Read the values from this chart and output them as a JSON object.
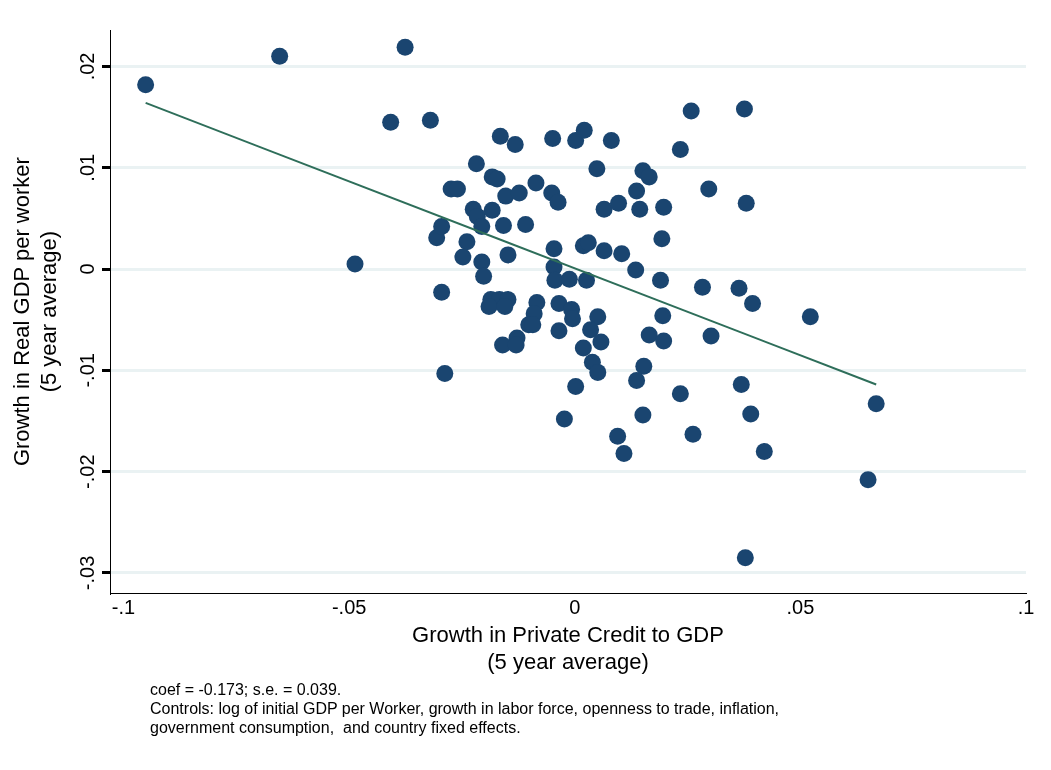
{
  "chart_data": {
    "type": "scatter",
    "xlabel": "Growth in Private Credit to GDP\n(5 year average)",
    "ylabel": "Growth in Real GDP per worker\n(5 year average)",
    "xlim": [
      -0.103,
      0.1
    ],
    "xticks": [
      {
        "value": -0.1,
        "label": "-.1"
      },
      {
        "value": -0.05,
        "label": "-.05"
      },
      0,
      {
        "value": 0.05,
        "label": ".05"
      },
      {
        "value": 0.1,
        "label": ".1"
      }
    ],
    "ylim": [
      -0.032,
      0.0236
    ],
    "yticks": [
      {
        "value": -0.03,
        "label": "-.03"
      },
      {
        "value": -0.02,
        "label": "-.02"
      },
      {
        "value": -0.01,
        "label": "-.01"
      },
      0,
      {
        "value": 0.01,
        "label": ".01"
      },
      {
        "value": 0.02,
        "label": ".02"
      }
    ],
    "grid": "y",
    "legend": false,
    "series": [
      {
        "type": "scatter",
        "marker": "circle",
        "color": "#1a4570",
        "x": [
          -0.0951,
          -0.0654,
          -0.0376,
          -0.0408,
          -0.032,
          -0.0487,
          -0.0295,
          -0.0288,
          -0.0306,
          -0.0295,
          -0.0274,
          -0.026,
          -0.0218,
          -0.0225,
          -0.0216,
          -0.0206,
          -0.0239,
          -0.0248,
          -0.0206,
          -0.0202,
          -0.0183,
          -0.0172,
          -0.0183,
          -0.0165,
          -0.0153,
          -0.0148,
          -0.0158,
          -0.0132,
          -0.0123,
          -0.0109,
          -0.0086,
          -0.0186,
          -0.0167,
          -0.0148,
          -0.019,
          -0.0155,
          -0.0084,
          -0.009,
          -0.0102,
          -0.0093,
          -0.0128,
          -0.016,
          -0.013,
          -0.0035,
          -0.0007,
          -0.0005,
          -0.0035,
          0.0051,
          0.0035,
          0.0019,
          0.0039,
          0.0051,
          0.0002,
          -0.0023,
          -0.0049,
          0.0002,
          0.0021,
          0.0049,
          -0.0051,
          -0.0037,
          -0.0046,
          -0.0046,
          -0.0044,
          -0.0012,
          0.0019,
          0.003,
          0.0065,
          0.0065,
          0.0026,
          0.0258,
          0.0376,
          0.0081,
          0.0234,
          0.0151,
          0.0165,
          0.0137,
          0.0297,
          0.0097,
          0.0144,
          0.0197,
          0.038,
          0.0104,
          0.0193,
          0.0135,
          0.019,
          0.0283,
          0.0364,
          0.0058,
          0.0394,
          0.0195,
          0.0165,
          0.0197,
          0.0302,
          0.0153,
          0.0137,
          0.0234,
          0.0369,
          0.0151,
          0.039,
          0.0095,
          0.0262,
          0.0109,
          0.042,
          0.0522,
          0.065,
          0.0668,
          0.0378
        ],
        "values": [
          0.0182,
          0.021,
          0.0219,
          0.0145,
          0.0147,
          0.0005,
          -0.0023,
          -0.0103,
          0.0031,
          0.0042,
          0.0079,
          0.0079,
          0.0104,
          0.0059,
          0.0052,
          0.0042,
          0.0027,
          0.0012,
          0.0007,
          -0.0007,
          0.0091,
          0.0089,
          0.0058,
          0.0131,
          0.0072,
          0.0014,
          0.0043,
          0.0123,
          0.0075,
          0.0044,
          0.0085,
          -0.003,
          -0.003,
          -0.003,
          -0.0037,
          -0.0037,
          -0.0033,
          -0.0044,
          -0.0055,
          -0.0055,
          -0.0068,
          -0.0075,
          -0.0075,
          -0.0034,
          -0.004,
          -0.0049,
          -0.0061,
          -0.0047,
          -0.006,
          -0.0078,
          -0.0092,
          -0.0102,
          -0.0116,
          -0.0148,
          0.0129,
          0.0127,
          0.0137,
          0.0099,
          0.0075,
          0.0066,
          0.002,
          0.0002,
          -0.0011,
          -0.001,
          0.0023,
          0.0026,
          0.0059,
          0.0018,
          -0.0011,
          0.0156,
          0.0158,
          0.0127,
          0.0118,
          0.0097,
          0.0091,
          0.0077,
          0.0079,
          0.0065,
          0.0059,
          0.0061,
          0.0065,
          0.0015,
          0.003,
          -0.0001,
          -0.0011,
          -0.0018,
          -0.0019,
          -0.0072,
          -0.0034,
          -0.0046,
          -0.0065,
          -0.0071,
          -0.0066,
          -0.0096,
          -0.011,
          -0.0123,
          -0.0114,
          -0.0144,
          -0.0143,
          -0.0165,
          -0.0163,
          -0.0182,
          -0.018,
          -0.0047,
          -0.0208,
          -0.0133,
          -0.0285
        ]
      },
      {
        "type": "line",
        "marker": "none",
        "color": "#2e6e5a",
        "x": [
          -0.0951,
          0.0668
        ],
        "values": [
          0.0164,
          -0.0114
        ]
      }
    ],
    "annotations": [
      "coef = -0.173; s.e. = 0.039.",
      "Controls: log of initial GDP per Worker, growth in labor force, openness to trade, inflation,",
      "government consumption,  and country fixed effects."
    ]
  }
}
